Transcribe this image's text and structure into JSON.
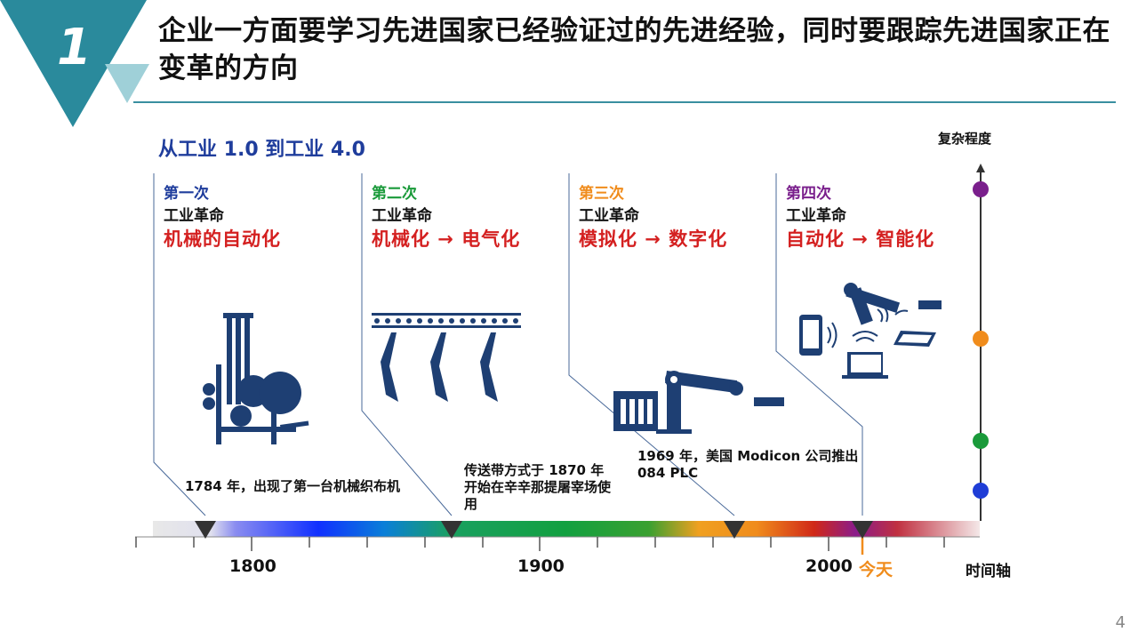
{
  "slide": {
    "badge_number": "1",
    "title": "企业一方面要学习先进国家已经验证过的先进经验，同时要跟踪先进国家正在变革的方向",
    "page_number": "4"
  },
  "figure": {
    "subtitle": "从工业 1.0 到工业 4.0",
    "complexity_label": "复杂程度",
    "time_axis_label": "时间轴",
    "today_label": "今天",
    "years": [
      "1800",
      "1900",
      "2000"
    ],
    "revolutions": [
      {
        "ordinal": "第一次",
        "label": "工业革命",
        "desc": "机械的自动化",
        "color": "#1f3d9c"
      },
      {
        "ordinal": "第二次",
        "label": "工业革命",
        "desc": "机械化 → 电气化",
        "color": "#1a9a3a"
      },
      {
        "ordinal": "第三次",
        "label": "工业革命",
        "desc": "模拟化 → 数字化",
        "color": "#f08c1c"
      },
      {
        "ordinal": "第四次",
        "label": "工业革命",
        "desc": "自动化 → 智能化",
        "color": "#7a1f8c"
      }
    ],
    "milestones": [
      {
        "text": "1784 年，出现了第一台机械织布机"
      },
      {
        "text": "传送带方式于 1870 年开始在辛辛那提屠宰场使用"
      },
      {
        "text": "1969 年，美国 Modicon 公司推出 084 PLC"
      }
    ],
    "complexity_dots": [
      "#7a1f8c",
      "#f08c1c",
      "#1a9a3a",
      "#1f3dd6"
    ],
    "colors": {
      "accent": "#1f7f93",
      "accent_light": "#8ec9d3",
      "icon": "#1e3f73"
    }
  }
}
